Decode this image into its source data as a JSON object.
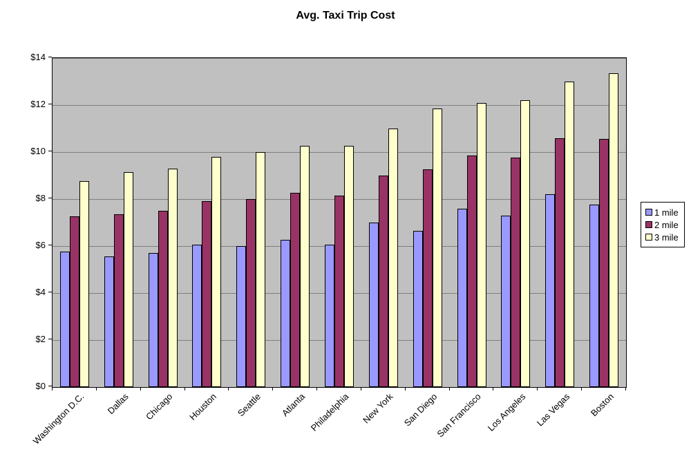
{
  "chart_data": {
    "type": "bar",
    "title": "Avg. Taxi Trip Cost",
    "categories": [
      "Washington D.C.",
      "Dallas",
      "Chicago",
      "Houston",
      "Seattle",
      "Atlanta",
      "Philadelphia",
      "New York",
      "San Diego",
      "San Francisco",
      "Los Angeles",
      "Las Vegas",
      "Boston"
    ],
    "series": [
      {
        "name": "1 mile",
        "color": "#9999FF",
        "values": [
          5.75,
          5.55,
          5.7,
          6.05,
          6.0,
          6.25,
          6.05,
          7.0,
          6.65,
          7.6,
          7.3,
          8.2,
          7.75
        ]
      },
      {
        "name": "2 mile",
        "color": "#993366",
        "values": [
          7.25,
          7.35,
          7.5,
          7.9,
          8.0,
          8.25,
          8.15,
          9.0,
          9.25,
          9.85,
          9.75,
          10.6,
          10.55
        ]
      },
      {
        "name": "3 mile",
        "color": "#FFFFCC",
        "values": [
          8.75,
          9.15,
          9.3,
          9.8,
          10.0,
          10.25,
          10.25,
          11.0,
          11.85,
          12.1,
          12.2,
          13.0,
          13.35
        ]
      }
    ],
    "ylim": [
      0,
      14
    ],
    "ytick_step": 2,
    "ytick_labels": [
      "$0",
      "$2",
      "$4",
      "$6",
      "$8",
      "$10",
      "$12",
      "$14"
    ],
    "xlabel": "",
    "ylabel": "",
    "grid": true,
    "legend_position": "right",
    "plot_bg_color": "#C0C0C0",
    "gridline_color": "#7F7F7F"
  }
}
